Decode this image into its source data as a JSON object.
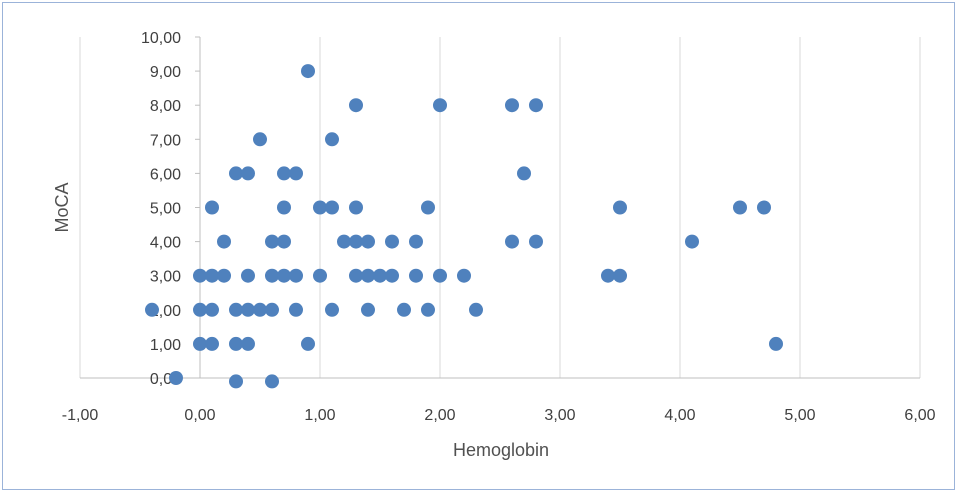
{
  "chart_data": {
    "type": "scatter",
    "title": "",
    "xlabel": "Hemoglobin",
    "ylabel": "MoCA",
    "xlim": [
      -1,
      6
    ],
    "ylim": [
      0,
      10
    ],
    "x_ticks": [
      "-1,00",
      "0,00",
      "1,00",
      "2,00",
      "3,00",
      "4,00",
      "5,00",
      "6,00"
    ],
    "y_ticks": [
      "0,00",
      "1,00",
      "2,00",
      "3,00",
      "4,00",
      "5,00",
      "6,00",
      "7,00",
      "8,00",
      "9,00",
      "10,00"
    ],
    "grid": "vertical",
    "legend": "none",
    "marker_color": "#4f81bd",
    "points": [
      [
        -0.2,
        0
      ],
      [
        0.3,
        -0.1
      ],
      [
        0.6,
        -0.1
      ],
      [
        0.0,
        1
      ],
      [
        0.1,
        1
      ],
      [
        0.3,
        1
      ],
      [
        0.4,
        1
      ],
      [
        0.9,
        1
      ],
      [
        4.8,
        1
      ],
      [
        -0.4,
        2
      ],
      [
        0.0,
        2
      ],
      [
        0.1,
        2
      ],
      [
        0.3,
        2
      ],
      [
        0.4,
        2
      ],
      [
        0.5,
        2
      ],
      [
        0.6,
        2
      ],
      [
        0.8,
        2
      ],
      [
        1.1,
        2
      ],
      [
        1.4,
        2
      ],
      [
        1.7,
        2
      ],
      [
        1.9,
        2
      ],
      [
        2.3,
        2
      ],
      [
        0.0,
        3
      ],
      [
        0.1,
        3
      ],
      [
        0.2,
        3
      ],
      [
        0.4,
        3
      ],
      [
        0.6,
        3
      ],
      [
        0.7,
        3
      ],
      [
        0.8,
        3
      ],
      [
        1.0,
        3
      ],
      [
        1.3,
        3
      ],
      [
        1.4,
        3
      ],
      [
        1.5,
        3
      ],
      [
        1.6,
        3
      ],
      [
        1.8,
        3
      ],
      [
        2.0,
        3
      ],
      [
        2.2,
        3
      ],
      [
        3.4,
        3
      ],
      [
        3.5,
        3
      ],
      [
        0.2,
        4
      ],
      [
        0.6,
        4
      ],
      [
        0.7,
        4
      ],
      [
        1.2,
        4
      ],
      [
        1.3,
        4
      ],
      [
        1.4,
        4
      ],
      [
        1.6,
        4
      ],
      [
        1.8,
        4
      ],
      [
        2.6,
        4
      ],
      [
        2.8,
        4
      ],
      [
        4.1,
        4
      ],
      [
        0.1,
        5
      ],
      [
        0.7,
        5
      ],
      [
        1.0,
        5
      ],
      [
        1.1,
        5
      ],
      [
        1.3,
        5
      ],
      [
        1.9,
        5
      ],
      [
        3.5,
        5
      ],
      [
        4.5,
        5
      ],
      [
        4.7,
        5
      ],
      [
        0.3,
        6
      ],
      [
        0.4,
        6
      ],
      [
        0.7,
        6
      ],
      [
        0.8,
        6
      ],
      [
        2.7,
        6
      ],
      [
        0.5,
        7
      ],
      [
        1.1,
        7
      ],
      [
        1.3,
        8
      ],
      [
        2.0,
        8
      ],
      [
        2.6,
        8
      ],
      [
        2.8,
        8
      ],
      [
        0.9,
        9
      ]
    ]
  }
}
